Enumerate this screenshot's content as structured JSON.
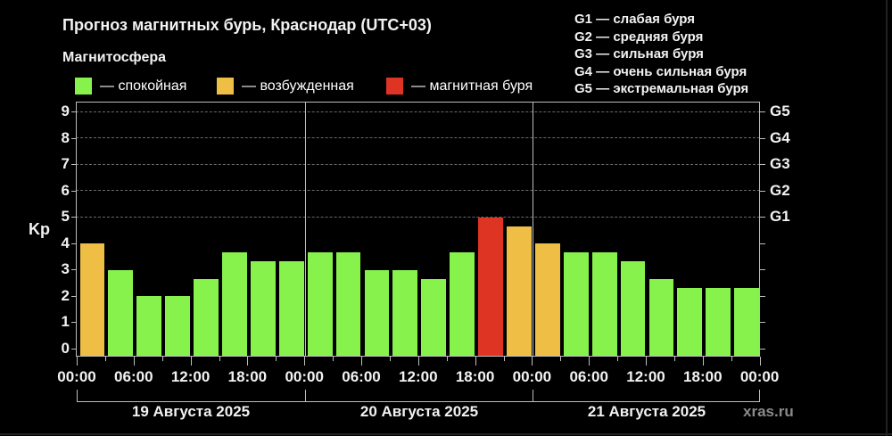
{
  "title": "Прогноз магнитных бурь, Краснодар (UTC+03)",
  "legend": {
    "heading": "Магнитосфера",
    "items": [
      {
        "label": "— спокойная",
        "color": "#88f24c"
      },
      {
        "label": "— возбужденная",
        "color": "#efbf45"
      },
      {
        "label": "— магнитная буря",
        "color": "#de3424"
      }
    ]
  },
  "g_scale": [
    "G1 — слабая буря",
    "G2 — средняя буря",
    "G3 — сильная буря",
    "G4 — очень сильная буря",
    "G5 — экстремальная буря"
  ],
  "axis": {
    "ylabel": "Kp",
    "yticks": [
      "0",
      "1",
      "2",
      "3",
      "4",
      "5",
      "6",
      "7",
      "8",
      "9"
    ],
    "right_labels": [
      "G1",
      "G2",
      "G3",
      "G4",
      "G5"
    ],
    "xticks": [
      "00:00",
      "06:00",
      "12:00",
      "18:00",
      "00:00",
      "06:00",
      "12:00",
      "18:00",
      "00:00",
      "06:00",
      "12:00",
      "18:00",
      "00:00"
    ],
    "days": [
      "19 Августа 2025",
      "20 Августа 2025",
      "21 Августа 2025"
    ]
  },
  "watermark": "xras.ru",
  "colors": {
    "calm": "#88f24c",
    "excited": "#efbf45",
    "storm": "#de3424",
    "axis": "#bdbdbd",
    "background": "#000000"
  },
  "chart_data": {
    "type": "bar",
    "title": "Прогноз магнитных бурь, Краснодар (UTC+03)",
    "xlabel": "",
    "ylabel": "Kp",
    "ylim": [
      0,
      9
    ],
    "grid": true,
    "interval_hours": 3,
    "categories": [
      "19.08 00:00",
      "19.08 03:00",
      "19.08 06:00",
      "19.08 09:00",
      "19.08 12:00",
      "19.08 15:00",
      "19.08 18:00",
      "19.08 21:00",
      "20.08 00:00",
      "20.08 03:00",
      "20.08 06:00",
      "20.08 09:00",
      "20.08 12:00",
      "20.08 15:00",
      "20.08 18:00",
      "20.08 21:00",
      "21.08 00:00",
      "21.08 03:00",
      "21.08 06:00",
      "21.08 09:00",
      "21.08 12:00",
      "21.08 15:00",
      "21.08 18:00",
      "21.08 21:00"
    ],
    "values": [
      4.0,
      3.0,
      2.0,
      2.0,
      2.67,
      3.67,
      3.33,
      3.33,
      3.67,
      3.67,
      3.0,
      3.0,
      2.67,
      3.67,
      5.0,
      4.67,
      4.0,
      3.67,
      3.67,
      3.33,
      2.67,
      2.33,
      2.33,
      2.33
    ],
    "states": [
      "excited",
      "calm",
      "calm",
      "calm",
      "calm",
      "calm",
      "calm",
      "calm",
      "calm",
      "calm",
      "calm",
      "calm",
      "calm",
      "calm",
      "storm",
      "excited",
      "excited",
      "calm",
      "calm",
      "calm",
      "calm",
      "calm",
      "calm",
      "calm"
    ],
    "legend": [
      "спокойная",
      "возбужденная",
      "магнитная буря"
    ],
    "right_axis": {
      "G1": 5,
      "G2": 6,
      "G3": 7,
      "G4": 8,
      "G5": 9
    }
  }
}
